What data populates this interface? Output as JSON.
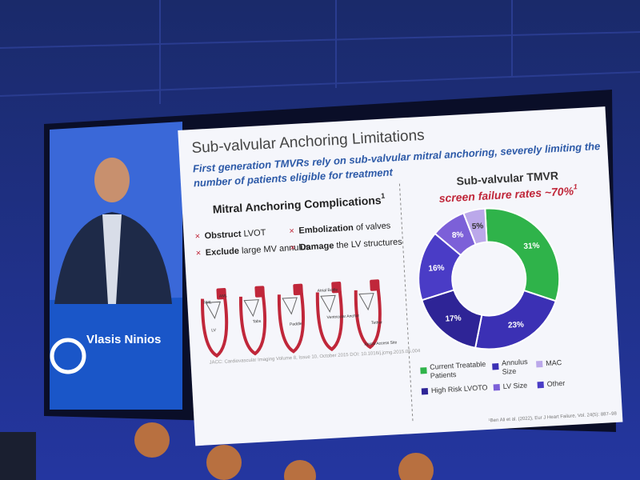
{
  "speaker": {
    "name": "Vlasis Ninios"
  },
  "slide": {
    "title": "Sub-valvular Anchoring Limitations",
    "subtitle_lines": [
      "First generation TMVRs rely on sub-valvular mitral anchoring, severely limiting the",
      "number of patients eligible for treatment"
    ],
    "left_heading": "Mitral Anchoring Complications",
    "left_heading_note": "1",
    "bullets": [
      {
        "strong": "Obstruct",
        "text": "LVOT"
      },
      {
        "strong": "Embolization",
        "text": "of valves"
      },
      {
        "strong": "Exclude",
        "text": "large MV annulus"
      },
      {
        "strong": "Damage",
        "text": "the LV structures"
      }
    ],
    "diagram_labels": [
      "PML",
      "AML",
      "LV",
      "Tabs",
      "Paddle",
      "Atrial Bottle",
      "Ventricular Anchor",
      "Tether",
      "Apical Access Site"
    ],
    "citation": "JACC: Cardiovascular Imaging Volume 8, Issue 10, October 2015 DOI: 10.1016/j.jcmg.2015.05.004",
    "footnote": "¹Ben Ali et al. (2022), Eur J Heart Failure, Vol. 24(5): 887–98"
  },
  "chart_data": {
    "type": "donut",
    "title": "Sub-valvular TMVR",
    "title_highlight": "screen failure rates ~70%",
    "title_note": "1",
    "categories": [
      "Current Treatable Patients",
      "Annulus Size",
      "High Risk LVOTO",
      "Other",
      "LV Size",
      "MAC"
    ],
    "values": [
      31,
      23,
      17,
      16,
      8,
      5
    ],
    "value_labels": [
      "31%",
      "23%",
      "17%",
      "16%",
      "8%",
      "5%"
    ],
    "colors": [
      "#2fb34a",
      "#3b30b4",
      "#2e2496",
      "#4a3cc6",
      "#7c60d8",
      "#bba8ea"
    ],
    "legend_order": [
      0,
      1,
      5,
      2,
      4,
      3
    ]
  }
}
